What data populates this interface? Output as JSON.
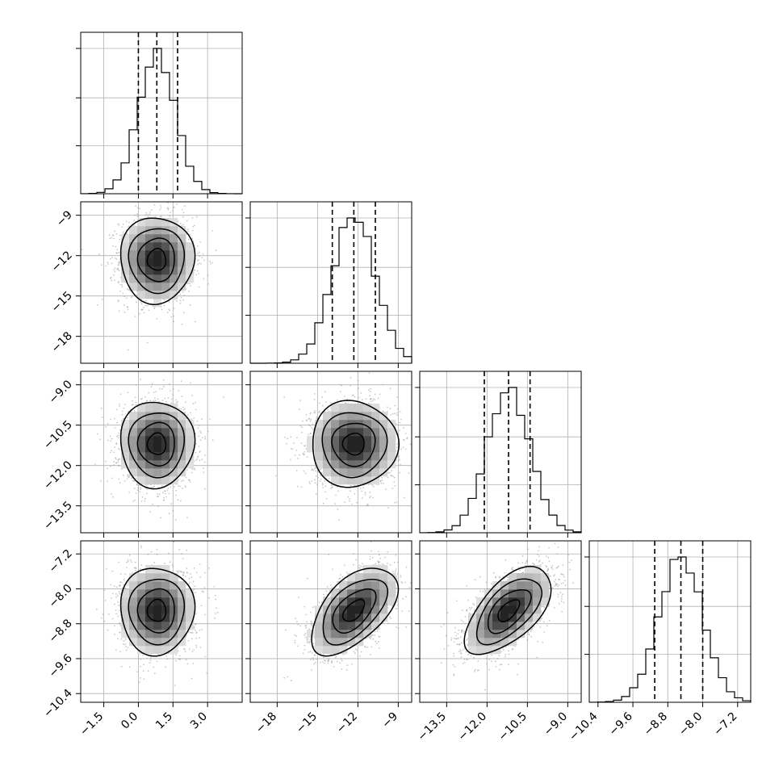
{
  "chart_data": {
    "type": "corner",
    "description_of_panels": "lower-triangle pairwise 2D histograms with contours; diagonal 1D histograms with dashed quantile lines",
    "grid": true,
    "parameters": [
      {
        "index": 0,
        "range": [
          -2.5,
          4.5
        ],
        "ticks": [
          -1.5,
          0.0,
          1.5,
          3.0
        ],
        "tick_labels": [
          "−1.5",
          "0.0",
          "1.5",
          "3.0"
        ],
        "mean": 0.8,
        "sd": 0.8,
        "quantiles": [
          0.0,
          0.8,
          1.7
        ]
      },
      {
        "index": 1,
        "range": [
          -20,
          -8
        ],
        "ticks": [
          -18,
          -15,
          -12,
          -9
        ],
        "tick_labels": [
          "−18",
          "−15",
          "−12",
          "−9"
        ],
        "mean": -12.3,
        "sd": 1.6,
        "quantiles": [
          -13.9,
          -12.3,
          -10.7
        ]
      },
      {
        "index": 2,
        "range": [
          -14.5,
          -8.5
        ],
        "ticks": [
          -13.5,
          -12.0,
          -10.5,
          -9.0
        ],
        "tick_labels": [
          "−13.5",
          "−12.0",
          "−10.5",
          "−9.0"
        ],
        "mean": -11.2,
        "sd": 0.8,
        "quantiles": [
          -12.1,
          -11.2,
          -10.4
        ]
      },
      {
        "index": 3,
        "range": [
          -10.6,
          -6.9
        ],
        "ticks": [
          -10.4,
          -9.6,
          -8.8,
          -8.0,
          -7.2
        ],
        "tick_labels": [
          "−10.4",
          "−9.6",
          "−8.8",
          "−8.0",
          "−7.2"
        ],
        "mean": -8.5,
        "sd": 0.5,
        "quantiles": [
          -9.1,
          -8.5,
          -8.0
        ]
      }
    ],
    "correlations": {
      "1-3": 0.55,
      "2-3": 0.6,
      "0-1": 0.0,
      "0-2": 0.0,
      "0-3": 0.0,
      "1-2": 0.0
    },
    "diagonal_hist_bins": 20,
    "contour_levels_sigma": [
      0.5,
      1.0,
      1.5,
      2.0
    ]
  },
  "colors": {
    "points": "#9a9a9a",
    "grid": "#b0b0b0",
    "axis": "#000000"
  }
}
